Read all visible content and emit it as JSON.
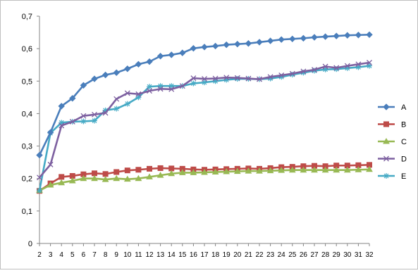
{
  "chart_data": {
    "type": "line",
    "title": "",
    "xlabel": "",
    "ylabel": "",
    "x": [
      2,
      3,
      4,
      5,
      6,
      7,
      8,
      9,
      10,
      11,
      12,
      13,
      14,
      15,
      16,
      17,
      18,
      19,
      20,
      21,
      22,
      23,
      24,
      25,
      26,
      27,
      28,
      29,
      30,
      31,
      32
    ],
    "x_tick_labels": [
      "2",
      "3",
      "4",
      "5",
      "6",
      "7",
      "8",
      "9",
      "10",
      "11",
      "12",
      "13",
      "14",
      "15",
      "16",
      "17",
      "18",
      "19",
      "20",
      "21",
      "22",
      "23",
      "24",
      "25",
      "26",
      "27",
      "28",
      "29",
      "30",
      "31",
      "32"
    ],
    "ylim": [
      0,
      0.7
    ],
    "y_ticks": [
      0,
      0.1,
      0.2,
      0.3,
      0.4,
      0.5,
      0.6,
      0.7
    ],
    "y_tick_labels": [
      "0",
      "0,1",
      "0,2",
      "0,3",
      "0,4",
      "0,5",
      "0,6",
      "0,7"
    ],
    "grid": "none",
    "legend_position": "right",
    "series": [
      {
        "name": "A",
        "color": "#4a7ebb",
        "marker": "diamond",
        "values": [
          0.272,
          0.342,
          0.423,
          0.447,
          0.487,
          0.507,
          0.519,
          0.526,
          0.538,
          0.552,
          0.56,
          0.577,
          0.581,
          0.587,
          0.601,
          0.605,
          0.608,
          0.612,
          0.614,
          0.616,
          0.62,
          0.624,
          0.628,
          0.63,
          0.632,
          0.635,
          0.637,
          0.639,
          0.641,
          0.642,
          0.643
        ]
      },
      {
        "name": "B",
        "color": "#be4b48",
        "marker": "square",
        "values": [
          0.162,
          0.185,
          0.205,
          0.208,
          0.213,
          0.216,
          0.214,
          0.22,
          0.225,
          0.227,
          0.23,
          0.232,
          0.231,
          0.23,
          0.228,
          0.227,
          0.228,
          0.229,
          0.23,
          0.231,
          0.23,
          0.232,
          0.235,
          0.236,
          0.238,
          0.239,
          0.238,
          0.24,
          0.24,
          0.241,
          0.242
        ]
      },
      {
        "name": "C",
        "color": "#98b954",
        "marker": "triangle",
        "values": [
          0.163,
          0.18,
          0.187,
          0.193,
          0.2,
          0.2,
          0.197,
          0.2,
          0.198,
          0.2,
          0.205,
          0.21,
          0.215,
          0.218,
          0.218,
          0.219,
          0.22,
          0.221,
          0.222,
          0.223,
          0.223,
          0.224,
          0.225,
          0.226,
          0.226,
          0.226,
          0.226,
          0.226,
          0.226,
          0.227,
          0.228
        ]
      },
      {
        "name": "D",
        "color": "#7d60a0",
        "marker": "x",
        "values": [
          0.203,
          0.243,
          0.363,
          0.375,
          0.393,
          0.397,
          0.402,
          0.445,
          0.463,
          0.46,
          0.47,
          0.476,
          0.475,
          0.485,
          0.509,
          0.507,
          0.508,
          0.511,
          0.51,
          0.508,
          0.506,
          0.513,
          0.518,
          0.523,
          0.53,
          0.535,
          0.545,
          0.541,
          0.547,
          0.552,
          0.557
        ]
      },
      {
        "name": "E",
        "color": "#46aac5",
        "marker": "star",
        "values": [
          0.163,
          0.34,
          0.372,
          0.375,
          0.376,
          0.378,
          0.41,
          0.415,
          0.43,
          0.45,
          0.483,
          0.485,
          0.485,
          0.485,
          0.493,
          0.496,
          0.5,
          0.504,
          0.507,
          0.507,
          0.506,
          0.508,
          0.513,
          0.52,
          0.526,
          0.532,
          0.536,
          0.537,
          0.54,
          0.543,
          0.547
        ]
      }
    ]
  }
}
